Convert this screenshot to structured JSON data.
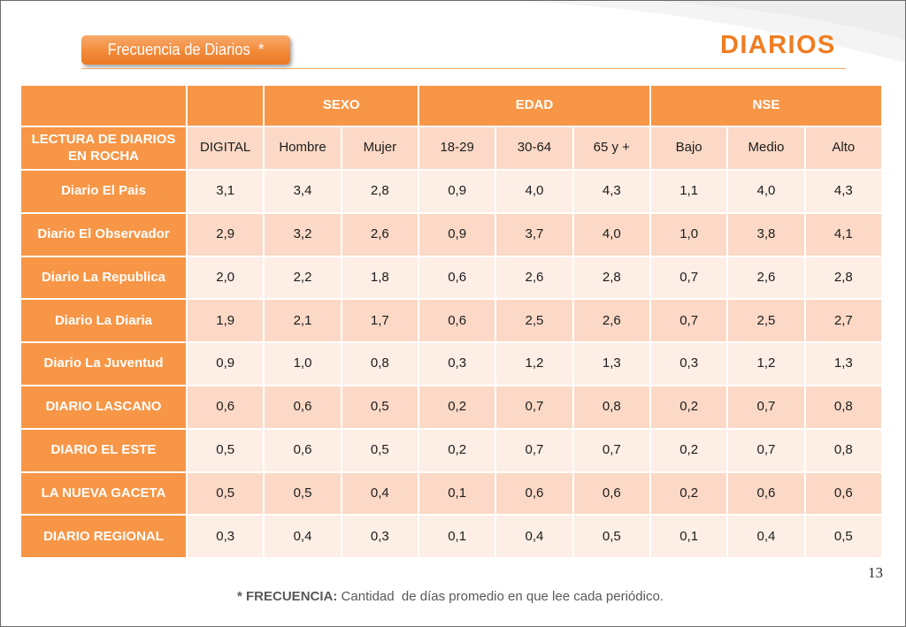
{
  "slide": {
    "title_tab": "Frecuencia de Diarios  *",
    "heading": "DIARIOS",
    "page_number": "13",
    "footnote": {
      "label": "* FRECUENCIA:",
      "text": "Cantidad  de días promedio en que lee cada periódico."
    }
  },
  "colors": {
    "accent": "#F79646",
    "heading": "#EF7D22",
    "title_tab": "#F28A3A",
    "band_dark": "#FBD9C6",
    "band_light": "#FDEEE6",
    "rule": "#F4A868"
  },
  "table": {
    "header_groups": [
      {
        "label": "",
        "columns": [
          "LECTURA DE DIARIOS EN ROCHA"
        ]
      },
      {
        "label": "",
        "columns": [
          "DIGITAL"
        ]
      },
      {
        "label": "SEXO",
        "columns": [
          "Hombre",
          "Mujer"
        ]
      },
      {
        "label": "EDAD",
        "columns": [
          "18-29",
          "30-64",
          "65 y +"
        ]
      },
      {
        "label": "NSE",
        "columns": [
          "Bajo",
          "Medio",
          "Alto"
        ]
      }
    ],
    "rows": [
      {
        "label": "Diario El Pais",
        "values": [
          "3,1",
          "3,4",
          "2,8",
          "0,9",
          "4,0",
          "4,3",
          "1,1",
          "4,0",
          "4,3"
        ]
      },
      {
        "label": "Diario El Observador",
        "values": [
          "2,9",
          "3,2",
          "2,6",
          "0,9",
          "3,7",
          "4,0",
          "1,0",
          "3,8",
          "4,1"
        ]
      },
      {
        "label": "Diario La Republica",
        "values": [
          "2,0",
          "2,2",
          "1,8",
          "0,6",
          "2,6",
          "2,8",
          "0,7",
          "2,6",
          "2,8"
        ]
      },
      {
        "label": "Diario La Diaria",
        "values": [
          "1,9",
          "2,1",
          "1,7",
          "0,6",
          "2,5",
          "2,6",
          "0,7",
          "2,5",
          "2,7"
        ]
      },
      {
        "label": "Diario La Juventud",
        "values": [
          "0,9",
          "1,0",
          "0,8",
          "0,3",
          "1,2",
          "1,3",
          "0,3",
          "1,2",
          "1,3"
        ]
      },
      {
        "label": "DIARIO LASCANO",
        "values": [
          "0,6",
          "0,6",
          "0,5",
          "0,2",
          "0,7",
          "0,8",
          "0,2",
          "0,7",
          "0,8"
        ]
      },
      {
        "label": "DIARIO EL ESTE",
        "values": [
          "0,5",
          "0,6",
          "0,5",
          "0,2",
          "0,7",
          "0,7",
          "0,2",
          "0,7",
          "0,8"
        ]
      },
      {
        "label": "LA NUEVA GACETA",
        "values": [
          "0,5",
          "0,5",
          "0,4",
          "0,1",
          "0,6",
          "0,6",
          "0,2",
          "0,6",
          "0,6"
        ]
      },
      {
        "label": "DIARIO REGIONAL",
        "values": [
          "0,3",
          "0,4",
          "0,3",
          "0,1",
          "0,4",
          "0,5",
          "0,1",
          "0,4",
          "0,5"
        ]
      }
    ]
  }
}
